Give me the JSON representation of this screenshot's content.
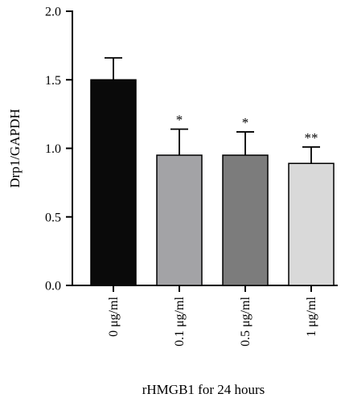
{
  "chart_data": {
    "type": "bar",
    "categories": [
      "0 μg/ml",
      "0.1 μg/ml",
      "0.5 μg/ml",
      "1 μg/ml"
    ],
    "values": [
      1.5,
      0.95,
      0.95,
      0.89
    ],
    "errors": [
      0.16,
      0.19,
      0.17,
      0.12
    ],
    "significance": [
      "",
      "*",
      "*",
      "**"
    ],
    "bar_colors": [
      "#0a0a0a",
      "#a3a3a6",
      "#7c7c7c",
      "#d9d9d9"
    ],
    "ylabel": "Drp1/GAPDH",
    "xlabel": "rHMGB1 for 24 hours",
    "ylim": [
      0,
      2.0
    ],
    "yticks": [
      "0.0",
      "0.5",
      "1.0",
      "1.5",
      "2.0"
    ],
    "grid": false,
    "legend": "none"
  }
}
